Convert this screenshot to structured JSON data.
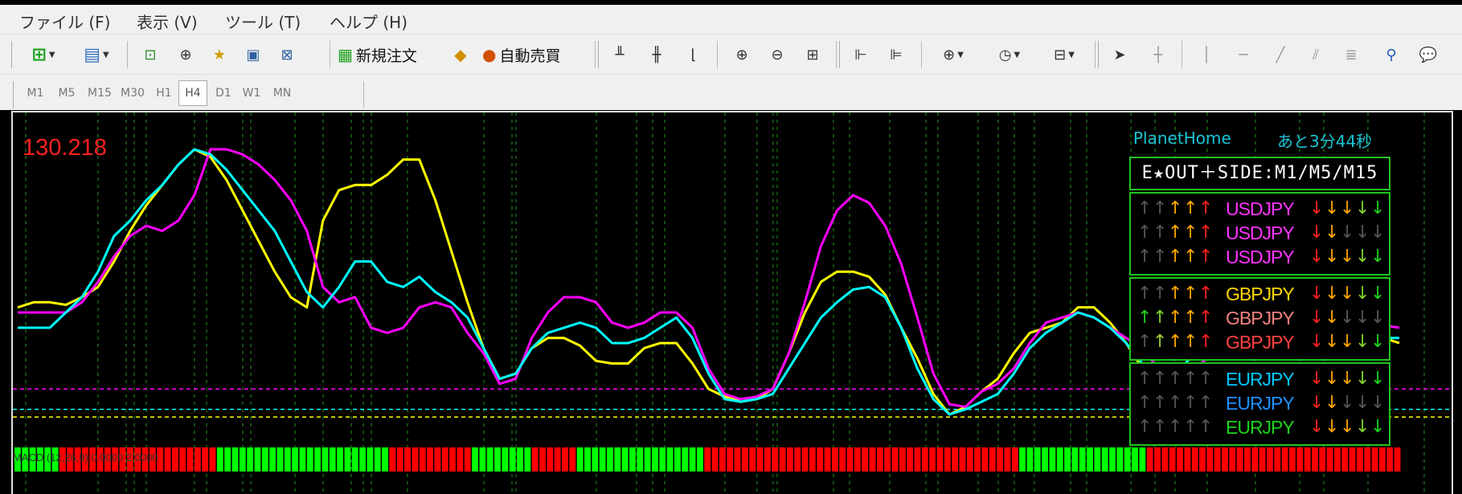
{
  "menu": [
    "ファイル (F)",
    "表示 (V)",
    "ツール (T)",
    "ヘルプ (H)"
  ],
  "toolbar": {
    "new_order_label": "新規注文",
    "auto_trade_label": "自動売買"
  },
  "timeframes": [
    "M1",
    "M5",
    "M15",
    "M30",
    "H1",
    "H4",
    "D1",
    "W1",
    "MN"
  ],
  "active_timeframe": "H4",
  "chart": {
    "price_label": "130.218"
  },
  "panel": {
    "broker": "PlanetHome",
    "countdown": "あと3分44秒",
    "header": "E★OUT＋SIDE:M1/M5/M15",
    "groups": [
      {
        "rows": [
          {
            "up": [
              "#555555",
              "#555555",
              "#ffa500",
              "#ffa500",
              "#ff2020"
            ],
            "symbol": "USDJPY",
            "symbol_color": "#ff33ff",
            "down": [
              "#ff2020",
              "#ffa500",
              "#ffa500",
              "#7fd12a",
              "#1fd11f"
            ]
          },
          {
            "up": [
              "#555555",
              "#555555",
              "#ffa500",
              "#ffa500",
              "#ff2020"
            ],
            "symbol": "USDJPY",
            "symbol_color": "#ff33ff",
            "down": [
              "#ff2020",
              "#ffa500",
              "#555555",
              "#555555",
              "#555555"
            ]
          },
          {
            "up": [
              "#555555",
              "#555555",
              "#ffa500",
              "#ffa500",
              "#ff2020"
            ],
            "symbol": "USDJPY",
            "symbol_color": "#ff33ff",
            "down": [
              "#ff2020",
              "#ffa500",
              "#ffa500",
              "#7fd12a",
              "#1fd11f"
            ]
          }
        ]
      },
      {
        "rows": [
          {
            "up": [
              "#555555",
              "#555555",
              "#ffa500",
              "#ffa500",
              "#ff2020"
            ],
            "symbol": "GBPJPY",
            "symbol_color": "#ffd700",
            "down": [
              "#ff2020",
              "#ffa500",
              "#ffa500",
              "#7fd12a",
              "#1fd11f"
            ]
          },
          {
            "up": [
              "#1fd11f",
              "#7fd12a",
              "#ffa500",
              "#ffa500",
              "#ff2020"
            ],
            "symbol": "GBPJPY",
            "symbol_color": "#f08080",
            "down": [
              "#ff2020",
              "#ffa500",
              "#555555",
              "#555555",
              "#555555"
            ]
          },
          {
            "up": [
              "#555555",
              "#9acd32",
              "#ffa500",
              "#ffa500",
              "#ff2020"
            ],
            "symbol": "GBPJPY",
            "symbol_color": "#ff4040",
            "down": [
              "#ff2020",
              "#ffa500",
              "#ffa500",
              "#7fd12a",
              "#1fd11f"
            ]
          }
        ]
      },
      {
        "rows": [
          {
            "up": [
              "#555555",
              "#555555",
              "#555555",
              "#555555",
              "#555555"
            ],
            "symbol": "EURJPY",
            "symbol_color": "#00c8ff",
            "down": [
              "#ff2020",
              "#ffa500",
              "#ffa500",
              "#7fd12a",
              "#1fd11f"
            ]
          },
          {
            "up": [
              "#555555",
              "#555555",
              "#555555",
              "#555555",
              "#555555"
            ],
            "symbol": "EURJPY",
            "symbol_color": "#1e90ff",
            "down": [
              "#ff2020",
              "#ffa500",
              "#555555",
              "#555555",
              "#555555"
            ]
          },
          {
            "up": [
              "#555555",
              "#555555",
              "#555555",
              "#555555",
              "#555555"
            ],
            "symbol": "EURJPY",
            "symbol_color": "#1fd11f",
            "down": [
              "#ff2020",
              "#ffa500",
              "#ffa500",
              "#7fd12a",
              "#1fd11f"
            ]
          }
        ]
      }
    ]
  },
  "macd": {
    "label": "MACD (12,26,9) 0.0000 2.0000",
    "bars": "GGGGGGRRRRRRRRRRRRRRRRRRRRRGGGGGGGGGGGGGGGGGGGGGGGRRRRRRRRRRRGGGGGGGGRRRRRRGGGGGGGGGGGGGGGGGRRRRRRRRRRRRRRRRRRRRRRRRRRRRRRRRRRRRRRRRRRGGGGGGGGGGGGGGGGGRRRRRRRRRRRRRRRRRRRRRRRRRRRRRRRRRR",
    "colors": {
      "G": "#00ff00",
      "R": "#ff0000"
    }
  },
  "chart_data": {
    "type": "line",
    "x": [
      0,
      1,
      2,
      3,
      4,
      5,
      6,
      7,
      8,
      9,
      10,
      11,
      12,
      13,
      14,
      15,
      16,
      17,
      18,
      19,
      20,
      21,
      22,
      23,
      24,
      25,
      26,
      27,
      28,
      29,
      30,
      31,
      32,
      33,
      34,
      35,
      36,
      37,
      38,
      39,
      40,
      41,
      42,
      43,
      44,
      45,
      46,
      47,
      48,
      49,
      50,
      51,
      52,
      53,
      54,
      55,
      56,
      57,
      58,
      59,
      60,
      61,
      62,
      63,
      64,
      65,
      66,
      67,
      68,
      69,
      70,
      71,
      72,
      73,
      74,
      75,
      76,
      77,
      78,
      79,
      80,
      81,
      82,
      83,
      84,
      85,
      86
    ],
    "series": [
      {
        "color": "#ffff00",
        "values": [
          38,
          40,
          40,
          39,
          42,
          46,
          56,
          68,
          78,
          86,
          94,
          100,
          97,
          88,
          76,
          64,
          52,
          42,
          38,
          72,
          84,
          86,
          86,
          90,
          96,
          96,
          80,
          60,
          40,
          22,
          10,
          12,
          22,
          26,
          26,
          23,
          17,
          16,
          16,
          22,
          24,
          24,
          16,
          6,
          3,
          1,
          2,
          6,
          20,
          36,
          48,
          52,
          52,
          50,
          43,
          30,
          18,
          4,
          -4,
          -1,
          5,
          10,
          20,
          28,
          30,
          32,
          38,
          38,
          32,
          24,
          14,
          6,
          6,
          12,
          18,
          22,
          28,
          30,
          32,
          34,
          31,
          30,
          28,
          28,
          27,
          26,
          24
        ]
      },
      {
        "color": "#ff00ff",
        "values": [
          36,
          36,
          36,
          36,
          40,
          48,
          58,
          66,
          70,
          68,
          72,
          82,
          100,
          100,
          98,
          94,
          88,
          80,
          68,
          46,
          40,
          42,
          30,
          28,
          30,
          38,
          40,
          38,
          28,
          20,
          8,
          10,
          26,
          36,
          42,
          42,
          40,
          32,
          30,
          32,
          36,
          36,
          30,
          14,
          4,
          2,
          3,
          6,
          20,
          40,
          62,
          76,
          82,
          79,
          70,
          55,
          34,
          12,
          0,
          -1,
          5,
          8,
          14,
          24,
          32,
          34,
          36,
          34,
          30,
          26,
          22,
          14,
          10,
          12,
          18,
          22,
          26,
          30,
          32,
          34,
          35,
          36,
          34,
          33,
          32,
          31,
          30
        ]
      },
      {
        "color": "#00ffff",
        "values": [
          30,
          30,
          30,
          36,
          42,
          52,
          66,
          72,
          80,
          86,
          94,
          100,
          98,
          92,
          84,
          76,
          68,
          56,
          44,
          38,
          46,
          56,
          56,
          48,
          46,
          50,
          44,
          40,
          34,
          22,
          10,
          12,
          22,
          28,
          30,
          32,
          30,
          24,
          24,
          26,
          30,
          34,
          26,
          12,
          2,
          1,
          2,
          4,
          14,
          24,
          34,
          40,
          45,
          46,
          42,
          30,
          14,
          2,
          -4,
          -2,
          1,
          4,
          12,
          22,
          28,
          32,
          36,
          34,
          30,
          24,
          16,
          10,
          12,
          18,
          22,
          26,
          28,
          30,
          32,
          33,
          32,
          30,
          28,
          27,
          26,
          26,
          26
        ]
      }
    ],
    "hlines": [
      {
        "color": "#ff00ff",
        "value": 6
      },
      {
        "color": "#00ffff",
        "value": -2
      },
      {
        "color": "#ffff00",
        "value": -5
      }
    ],
    "ylim": [
      -10,
      105
    ]
  }
}
